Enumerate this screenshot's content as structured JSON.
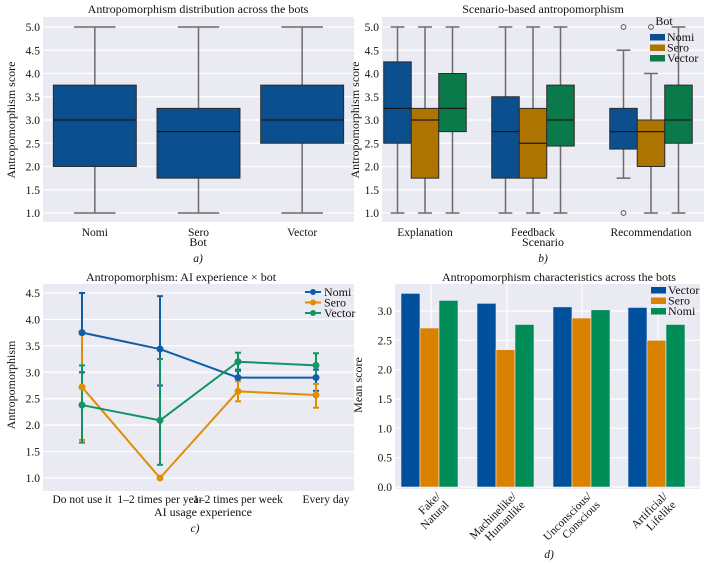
{
  "colors": {
    "background": "#eaeaf2",
    "grid": "#ffffff",
    "nomi_blue": "#0c4f8f",
    "sero_orange_box": "#ae7400",
    "sero_orange_line": "#de8f05",
    "vector_green": "#0b7a4b",
    "vector_green_line": "#029e73",
    "whisker": "#555555",
    "bar_blue": "#00509b",
    "bar_orange": "#d98200",
    "bar_green": "#008c57"
  },
  "chart_data": [
    {
      "id": "a",
      "type": "box",
      "title": "Antropomorphism distribution across the bots",
      "xlabel": "Bot",
      "ylabel": "Antropomorphism score",
      "caption": "a)",
      "ylim": [
        0.8,
        5.15
      ],
      "yticks": [
        "1.0",
        "1.5",
        "2.0",
        "2.5",
        "3.0",
        "3.5",
        "4.0",
        "4.5",
        "5.0"
      ],
      "categories": [
        "Nomi",
        "Sero",
        "Vector"
      ],
      "boxes": [
        {
          "name": "Nomi",
          "min": 1.0,
          "q1": 2.0,
          "median": 3.0,
          "q3": 3.75,
          "max": 5.0
        },
        {
          "name": "Sero",
          "min": 1.0,
          "q1": 1.75,
          "median": 2.75,
          "q3": 3.25,
          "max": 5.0
        },
        {
          "name": "Vector",
          "min": 1.0,
          "q1": 2.5,
          "median": 3.0,
          "q3": 3.75,
          "max": 5.0
        }
      ],
      "grid": true
    },
    {
      "id": "b",
      "type": "box",
      "title": "Scenario-based antropomorphism",
      "xlabel": "Scenario",
      "ylabel": "Antropomorphism score",
      "caption": "b)",
      "ylim": [
        0.8,
        5.15
      ],
      "yticks": [
        "1.0",
        "1.5",
        "2.0",
        "2.5",
        "3.0",
        "3.5",
        "4.0",
        "4.5",
        "5.0"
      ],
      "categories": [
        "Explanation",
        "Feedback",
        "Recommendation"
      ],
      "legend": {
        "title": "Bot",
        "entries": [
          "Nomi",
          "Sero",
          "Vector"
        ],
        "placement": "top-right"
      },
      "series": [
        {
          "name": "Nomi",
          "boxes": [
            {
              "min": 1.0,
              "q1": 2.5,
              "median": 3.25,
              "q3": 4.25,
              "max": 5.0,
              "outliers": []
            },
            {
              "min": 1.0,
              "q1": 1.75,
              "median": 2.75,
              "q3": 3.5,
              "max": 5.0,
              "outliers": []
            },
            {
              "min": 1.75,
              "q1": 2.375,
              "median": 2.75,
              "q3": 3.25,
              "max": 4.5,
              "outliers": [
                5.0,
                1.0
              ]
            }
          ]
        },
        {
          "name": "Sero",
          "boxes": [
            {
              "min": 1.0,
              "q1": 1.75,
              "median": 3.0,
              "q3": 3.25,
              "max": 5.0,
              "outliers": []
            },
            {
              "min": 1.0,
              "q1": 1.75,
              "median": 2.5,
              "q3": 3.25,
              "max": 5.0,
              "outliers": []
            },
            {
              "min": 1.0,
              "q1": 2.0,
              "median": 2.75,
              "q3": 3.0,
              "max": 4.0,
              "outliers": [
                5.0
              ]
            }
          ]
        },
        {
          "name": "Vector",
          "boxes": [
            {
              "min": 1.0,
              "q1": 2.75,
              "median": 3.25,
              "q3": 4.0,
              "max": 5.0,
              "outliers": []
            },
            {
              "min": 1.0,
              "q1": 2.44,
              "median": 3.0,
              "q3": 3.75,
              "max": 5.0,
              "outliers": []
            },
            {
              "min": 1.0,
              "q1": 2.5,
              "median": 3.0,
              "q3": 3.75,
              "max": 5.0,
              "outliers": []
            }
          ]
        }
      ],
      "grid": true
    },
    {
      "id": "c",
      "type": "line",
      "title": "Antropomorphism: AI experience × bot",
      "xlabel": "AI usage experience",
      "ylabel": "Antropomorphism",
      "caption": "c)",
      "ylim": [
        0.82,
        4.6
      ],
      "yticks": [
        "1.0",
        "1.5",
        "2.0",
        "2.5",
        "3.0",
        "3.5",
        "4.0",
        "4.5"
      ],
      "categories": [
        "Do not use it",
        "1–2 times per year",
        "1–2 times per week",
        "Every day"
      ],
      "legend": {
        "entries": [
          "Nomi",
          "Sero",
          "Vector"
        ],
        "placement": "top-right"
      },
      "series": [
        {
          "name": "Nomi",
          "values": [
            3.75,
            3.44,
            2.9,
            2.9
          ],
          "err_low": [
            3.0,
            2.75,
            2.65,
            2.65
          ],
          "err_high": [
            4.5,
            4.44,
            3.05,
            3.05
          ]
        },
        {
          "name": "Sero",
          "values": [
            2.72,
            1.0,
            2.64,
            2.57
          ],
          "err_low": [
            1.72,
            1.0,
            2.45,
            2.33
          ],
          "err_high": [
            3.72,
            1.0,
            2.83,
            2.78
          ]
        },
        {
          "name": "Vector",
          "values": [
            2.38,
            2.09,
            3.2,
            3.13
          ],
          "err_low": [
            1.67,
            1.25,
            3.02,
            2.9
          ],
          "err_high": [
            3.13,
            3.25,
            3.37,
            3.36
          ]
        }
      ],
      "grid": true
    },
    {
      "id": "d",
      "type": "bar",
      "title": "Antropomorphism characteristics across the bots",
      "xlabel": "",
      "ylabel": "Mean score",
      "caption": "d)",
      "ylim": [
        0.0,
        3.4
      ],
      "yticks": [
        "0.0",
        "0.5",
        "1.0",
        "1.5",
        "2.0",
        "2.5",
        "3.0"
      ],
      "categories": [
        "Fake/\nNatural",
        "Machinelike/\nHumanlike",
        "Unconscious/\nConscious",
        "Artificial/\nLifelike"
      ],
      "category_lines": [
        [
          "Fake/",
          "Natural"
        ],
        [
          "Machinelike/",
          "Humanlike"
        ],
        [
          "Unconscious/",
          "Conscious"
        ],
        [
          "Artificial/",
          "Lifelike"
        ]
      ],
      "legend": {
        "entries": [
          "Vector",
          "Sero",
          "Nomi"
        ],
        "placement": "top-right"
      },
      "series": [
        {
          "name": "Vector",
          "values": [
            3.3,
            3.13,
            3.07,
            3.06
          ]
        },
        {
          "name": "Sero",
          "values": [
            2.71,
            2.34,
            2.88,
            2.5
          ]
        },
        {
          "name": "Nomi",
          "values": [
            3.18,
            2.77,
            3.02,
            2.77
          ]
        }
      ],
      "grid": true
    }
  ]
}
